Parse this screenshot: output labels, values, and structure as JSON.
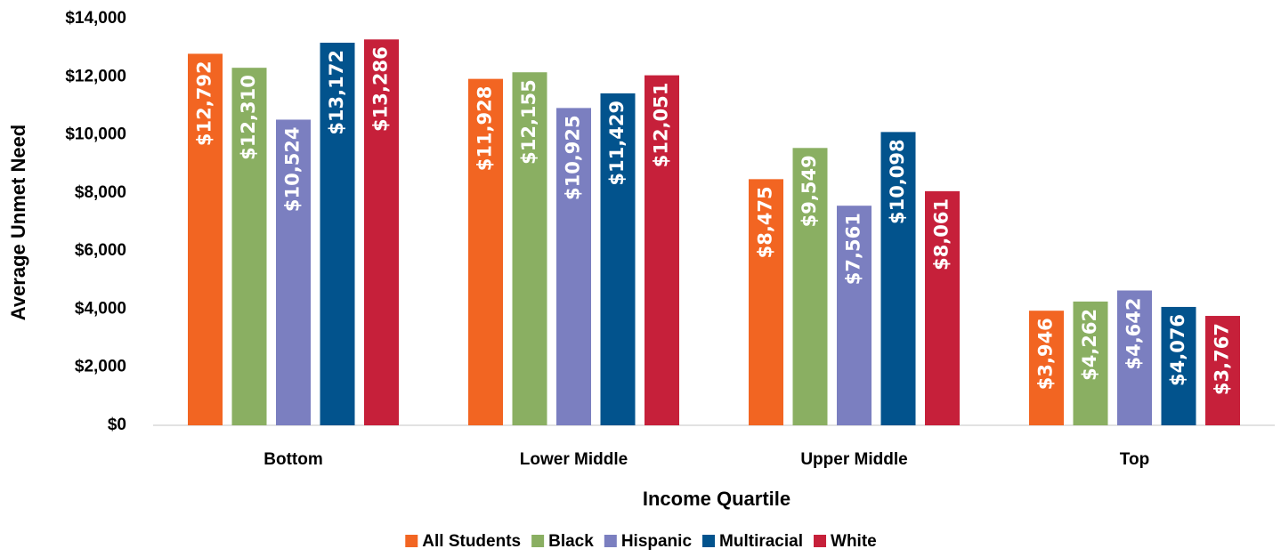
{
  "chart_data": {
    "type": "bar",
    "x_label": "Income Quartile",
    "y_label": "Average Unmet Need",
    "categories": [
      "Bottom",
      "Lower Middle",
      "Upper Middle",
      "Top"
    ],
    "series": [
      {
        "name": "All Students",
        "color": "#f26522",
        "values": [
          12792,
          11928,
          8475,
          3946
        ],
        "value_labels": [
          "$12,792",
          "$11,928",
          "$8,475",
          "$3,946"
        ]
      },
      {
        "name": "Black",
        "color": "#8aaf62",
        "values": [
          12310,
          12155,
          9549,
          4262
        ],
        "value_labels": [
          "$12,310",
          "$12,155",
          "$9,549",
          "$4,262"
        ]
      },
      {
        "name": "Hispanic",
        "color": "#7b7fc0",
        "values": [
          10524,
          10925,
          7561,
          4642
        ],
        "value_labels": [
          "$10,524",
          "$10,925",
          "$7,561",
          "$4,642"
        ]
      },
      {
        "name": "Multiracial",
        "color": "#02538d",
        "values": [
          13172,
          11429,
          10098,
          4076
        ],
        "value_labels": [
          "$13,172",
          "$11,429",
          "$10,098",
          "$4,076"
        ]
      },
      {
        "name": "White",
        "color": "#c6203a",
        "values": [
          13286,
          12051,
          8061,
          3767
        ],
        "value_labels": [
          "$13,286",
          "$12,051",
          "$8,061",
          "$3,767"
        ]
      }
    ],
    "ylim": [
      0,
      14000
    ],
    "yticks": [
      {
        "value": 0,
        "label": "$0"
      },
      {
        "value": 2000,
        "label": "$2,000"
      },
      {
        "value": 4000,
        "label": "$4,000"
      },
      {
        "value": 6000,
        "label": "$6,000"
      },
      {
        "value": 8000,
        "label": "$8,000"
      },
      {
        "value": 10000,
        "label": "$10,000"
      },
      {
        "value": 12000,
        "label": "$12,000"
      },
      {
        "value": 14000,
        "label": "$14,000"
      }
    ],
    "grid": false,
    "legend": "bottom"
  }
}
